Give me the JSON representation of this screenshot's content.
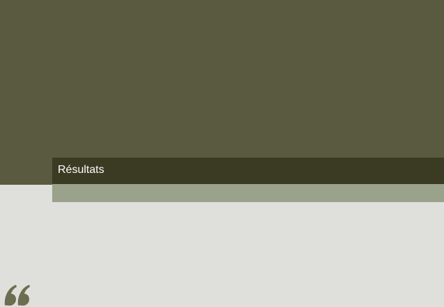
{
  "slide": {
    "title": "Résultats",
    "quote_icon": "opening-quote-icon"
  },
  "colors": {
    "top_panel": "#5a5a41",
    "title_bar": "#3b3b24",
    "accent_bar": "#9aa28b",
    "background": "#dfe0dc",
    "quote": "#6b6e50",
    "title_text": "#ffffff"
  }
}
